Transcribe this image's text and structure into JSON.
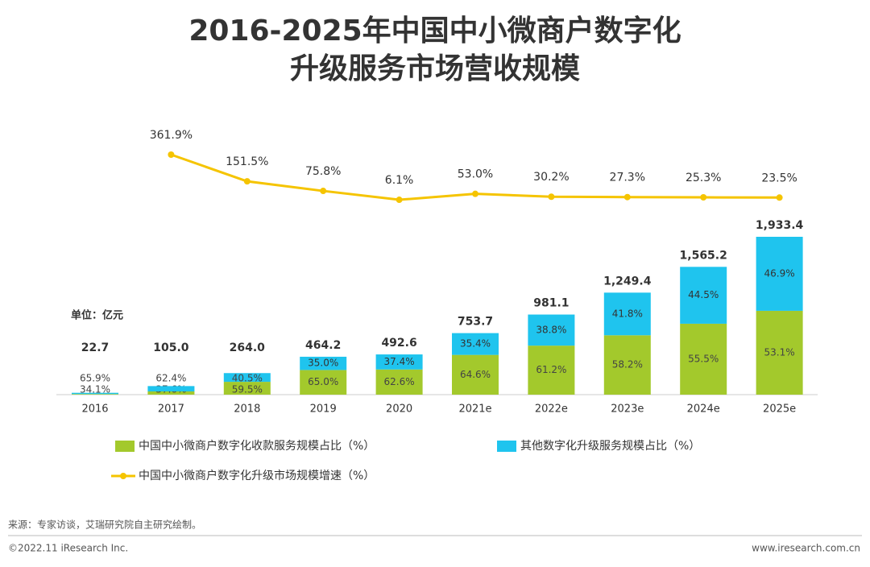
{
  "chart_data": {
    "type": "bar",
    "title_lines": [
      "2016-2025年中国中小微商户数字化",
      "升级服务市场营收规模"
    ],
    "unit": "单位：亿元",
    "categories": [
      "2016",
      "2017",
      "2018",
      "2019",
      "2020",
      "2021e",
      "2022e",
      "2023e",
      "2024e",
      "2025e"
    ],
    "totals": [
      22.7,
      105.0,
      264.0,
      464.2,
      492.6,
      753.7,
      981.1,
      1249.4,
      1565.2,
      1933.4
    ],
    "total_labels": [
      "22.7",
      "105.0",
      "264.0",
      "464.2",
      "492.6",
      "753.7",
      "981.1",
      "1,249.4",
      "1,565.2",
      "1,933.4"
    ],
    "series": [
      {
        "name": "中国中小微商户数字化收款服务规模占比（%）",
        "color": "#a3c92c",
        "values": [
          34.1,
          37.6,
          59.5,
          65.0,
          62.6,
          64.6,
          61.2,
          58.2,
          55.5,
          53.1
        ],
        "value_labels": [
          "34.1%",
          "37.6%",
          "59.5%",
          "65.0%",
          "62.6%",
          "64.6%",
          "61.2%",
          "58.2%",
          "55.5%",
          "53.1%"
        ]
      },
      {
        "name": "其他数字化升级服务规模占比（%）",
        "color": "#1fc4ee",
        "values": [
          65.9,
          62.4,
          40.5,
          35.0,
          37.4,
          35.4,
          38.8,
          41.8,
          44.5,
          46.9
        ],
        "value_labels": [
          "65.9%",
          "62.4%",
          "40.5%",
          "35.0%",
          "37.4%",
          "35.4%",
          "38.8%",
          "41.8%",
          "44.5%",
          "46.9%"
        ]
      },
      {
        "name": "中国中小微商户数字化升级市场规模增速（%）",
        "color": "#f5c400",
        "type": "line",
        "axis": "y2",
        "values": [
          null,
          361.9,
          151.5,
          75.8,
          6.1,
          53.0,
          30.2,
          27.3,
          25.3,
          23.5
        ],
        "value_labels": [
          null,
          "361.9%",
          "151.5%",
          "75.8%",
          "6.1%",
          "53.0%",
          "30.2%",
          "27.3%",
          "25.3%",
          "23.5%"
        ]
      }
    ],
    "source": "来源：专家访谈，艾瑞研究院自主研究绘制。",
    "copyright": "©2022.11 iResearch Inc.",
    "website": "www.iresearch.com.cn"
  }
}
